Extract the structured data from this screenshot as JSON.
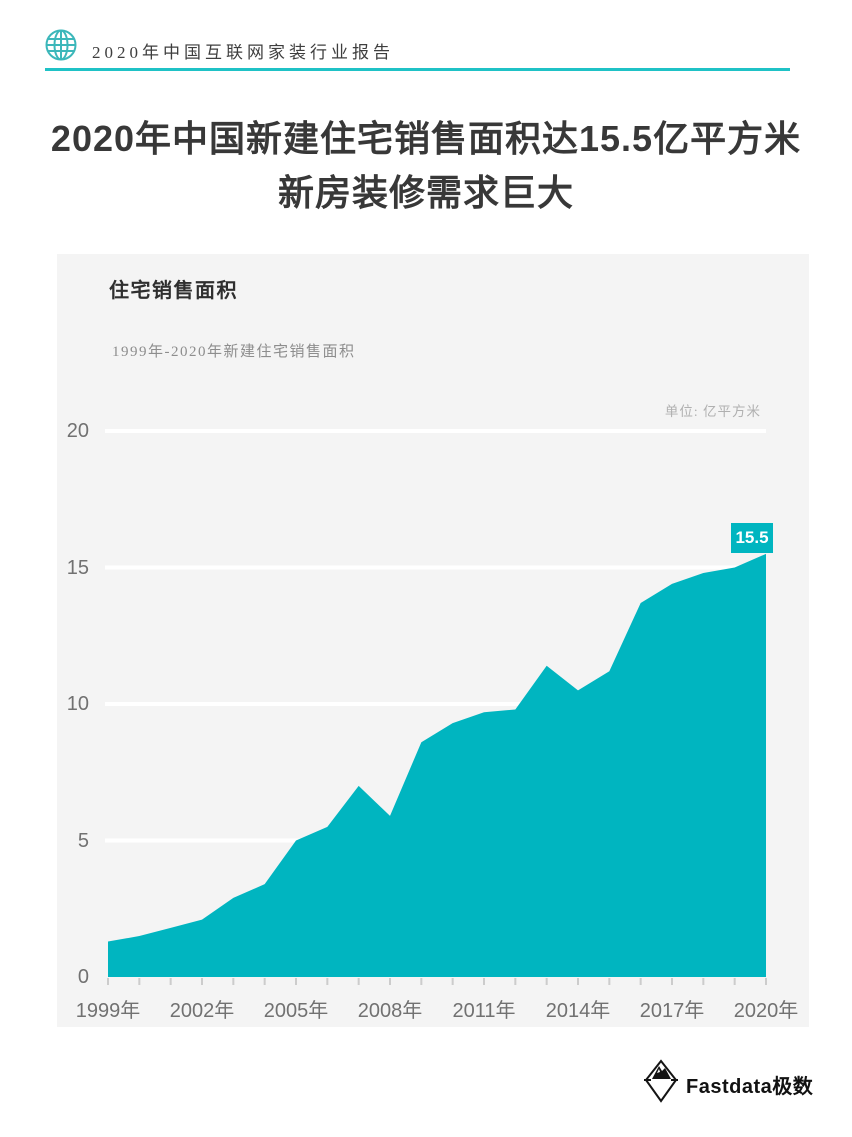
{
  "header": {
    "report_title": "2020年中国互联网家装行业报告"
  },
  "title": {
    "line1": "2020年中国新建住宅销售面积达15.5亿平方米",
    "line2": "新房装修需求巨大"
  },
  "colors": {
    "teal": "#00b5c0",
    "header_rule_teal": "#1fc2c6",
    "globe_teal": "#3cb7ba",
    "panel_bg": "#f4f4f4",
    "title_text": "#383838",
    "axis_text": "#717171",
    "grid_white": "#ffffff",
    "tick_gray": "#cccccc"
  },
  "chart_data": {
    "type": "area",
    "title": "住宅销售面积",
    "subtitle": "1999年-2020年新建住宅销售面积",
    "unit_label": "单位: 亿平方米",
    "x": [
      1999,
      2000,
      2001,
      2002,
      2003,
      2004,
      2005,
      2006,
      2007,
      2008,
      2009,
      2010,
      2011,
      2012,
      2013,
      2014,
      2015,
      2016,
      2017,
      2018,
      2019,
      2020
    ],
    "values": [
      1.3,
      1.5,
      1.8,
      2.1,
      2.9,
      3.4,
      5.0,
      5.5,
      7.0,
      5.9,
      8.6,
      9.3,
      9.7,
      9.8,
      11.4,
      10.5,
      11.2,
      13.7,
      14.4,
      14.8,
      15.0,
      15.5
    ],
    "series_name": "住宅销售面积",
    "series_color": "#00b5c0",
    "xticks": [
      {
        "year": 1999,
        "label": "1999年"
      },
      {
        "year": 2002,
        "label": "2002年"
      },
      {
        "year": 2005,
        "label": "2005年"
      },
      {
        "year": 2008,
        "label": "2008年"
      },
      {
        "year": 2011,
        "label": "2011年"
      },
      {
        "year": 2014,
        "label": "2014年"
      },
      {
        "year": 2017,
        "label": "2017年"
      },
      {
        "year": 2020,
        "label": "2020年"
      }
    ],
    "yticks": [
      0,
      5,
      10,
      15,
      20
    ],
    "ylim": [
      0,
      20
    ],
    "grid": true,
    "legend_position": "none",
    "end_label": "15.5"
  },
  "footer": {
    "brand": "Fastdata极数"
  }
}
